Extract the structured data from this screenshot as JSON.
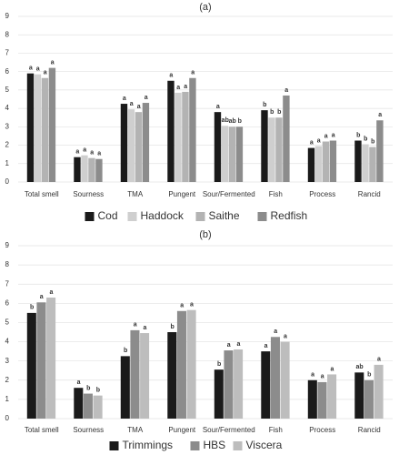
{
  "chart_data": [
    {
      "type": "bar",
      "title": "(a)",
      "categories": [
        "Total smell",
        "Sourness",
        "TMA",
        "Pungent",
        "Sour/Fermented",
        "Fish",
        "Process",
        "Rancid"
      ],
      "series": [
        {
          "name": "Cod",
          "color": "#1a1a1a",
          "values": [
            5.9,
            1.35,
            4.25,
            5.5,
            3.8,
            3.9,
            1.85,
            2.25
          ],
          "letters": [
            "a",
            "a",
            "a",
            "a",
            "a",
            "b",
            "a",
            "b"
          ]
        },
        {
          "name": "Haddock",
          "color": "#cfcfcf",
          "values": [
            5.85,
            1.45,
            3.95,
            4.85,
            3.05,
            3.5,
            1.95,
            2.05
          ],
          "letters": [
            "a",
            "a",
            "a",
            "a",
            "ab",
            "b",
            "a",
            "b"
          ]
        },
        {
          "name": "Saithe",
          "color": "#b3b3b3",
          "values": [
            5.65,
            1.3,
            3.8,
            4.9,
            3.0,
            3.5,
            2.2,
            1.9
          ],
          "letters": [
            "a",
            "a",
            "a",
            "a",
            "ab",
            "b",
            "a",
            "b"
          ]
        },
        {
          "name": "Redfish",
          "color": "#8c8c8c",
          "values": [
            6.2,
            1.25,
            4.3,
            5.65,
            3.0,
            4.7,
            2.25,
            3.35
          ],
          "letters": [
            "a",
            "a",
            "a",
            "a",
            "b",
            "a",
            "a",
            "a"
          ]
        }
      ],
      "ylim": [
        0,
        9
      ],
      "yticks": [
        0,
        1,
        2,
        3,
        4,
        5,
        6,
        7,
        8,
        9
      ],
      "grid": true,
      "legend": "bottom"
    },
    {
      "type": "bar",
      "title": "(b)",
      "categories": [
        "Total smell",
        "Sourness",
        "TMA",
        "Pungent",
        "Sour/Fermented",
        "Fish",
        "Process",
        "Rancid"
      ],
      "series": [
        {
          "name": "Trimmings",
          "color": "#1a1a1a",
          "values": [
            5.5,
            1.6,
            3.25,
            4.5,
            2.55,
            3.5,
            2.0,
            2.4
          ],
          "letters": [
            "b",
            "a",
            "b",
            "b",
            "b",
            "a",
            "a",
            "ab"
          ]
        },
        {
          "name": "HBS",
          "color": "#8c8c8c",
          "values": [
            6.05,
            1.3,
            4.6,
            5.6,
            3.55,
            4.25,
            1.9,
            2.0
          ],
          "letters": [
            "a",
            "b",
            "a",
            "a",
            "a",
            "a",
            "a",
            "b"
          ]
        },
        {
          "name": "Viscera",
          "color": "#bdbdbd",
          "values": [
            6.3,
            1.2,
            4.45,
            5.65,
            3.6,
            4.0,
            2.3,
            2.8
          ],
          "letters": [
            "a",
            "b",
            "a",
            "a",
            "a",
            "a",
            "a",
            "a"
          ]
        }
      ],
      "ylim": [
        0,
        9
      ],
      "yticks": [
        0,
        1,
        2,
        3,
        4,
        5,
        6,
        7,
        8,
        9
      ],
      "grid": true,
      "legend": "bottom"
    }
  ]
}
